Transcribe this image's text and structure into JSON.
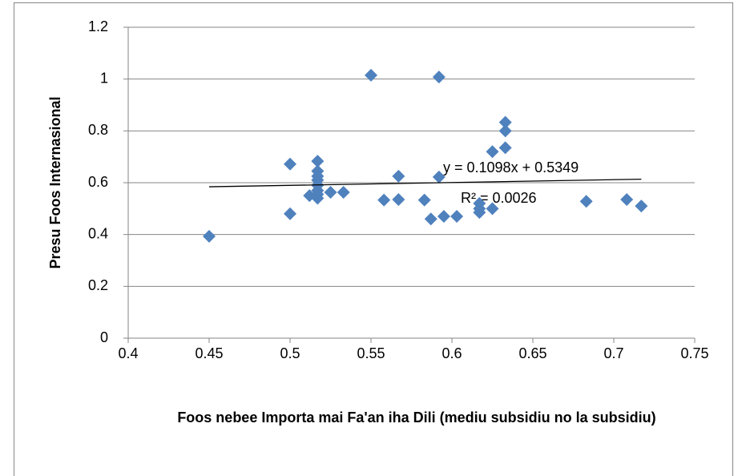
{
  "chart_data": {
    "type": "scatter",
    "x_label": "Foos nebee Importa mai Fa'an iha Dili (mediu subsidiu no la subsidiu)",
    "y_label": "Presu Foos Internasional",
    "series": [
      {
        "color": "#4f81bd",
        "x": [
          0.45,
          0.5,
          0.5,
          0.512,
          0.517,
          0.517,
          0.517,
          0.517,
          0.517,
          0.517,
          0.517,
          0.517,
          0.525,
          0.533,
          0.55,
          0.558,
          0.567,
          0.567,
          0.583,
          0.587,
          0.592,
          0.592,
          0.595,
          0.603,
          0.617,
          0.617,
          0.617,
          0.625,
          0.625,
          0.633,
          0.633,
          0.633,
          0.683,
          0.708,
          0.717
        ],
        "values": [
          0.393,
          0.672,
          0.48,
          0.55,
          0.683,
          0.645,
          0.625,
          0.61,
          0.59,
          0.57,
          0.555,
          0.54,
          0.563,
          0.563,
          1.015,
          0.533,
          0.625,
          0.535,
          0.533,
          0.46,
          1.008,
          0.622,
          0.47,
          0.47,
          0.52,
          0.485,
          0.5,
          0.72,
          0.5,
          0.833,
          0.8,
          0.735,
          0.528,
          0.535,
          0.51
        ]
      }
    ],
    "trendline": {
      "slope": 0.1098,
      "intercept": 0.5349,
      "equation": "y = 0.1098x + 0.5349",
      "r_squared": "R² = 0.0026"
    },
    "xlim": [
      0.4,
      0.75
    ],
    "xticks": [
      0.4,
      0.45,
      0.5,
      0.55,
      0.6,
      0.65,
      0.7,
      0.75
    ],
    "ylim": [
      0,
      1.2
    ],
    "yticks": [
      0,
      0.2,
      0.4,
      0.6,
      0.8,
      1,
      1.2
    ],
    "grid": true
  }
}
